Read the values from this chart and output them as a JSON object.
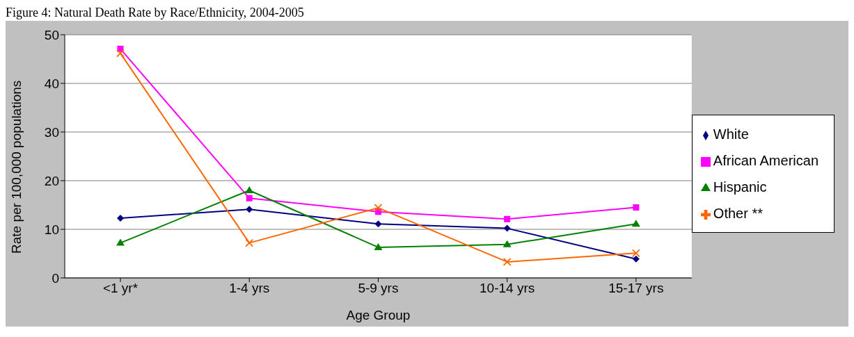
{
  "chart_data": {
    "type": "line",
    "title": "Figure 4: Natural Death Rate by Race/Ethnicity, 2004-2005",
    "xlabel": "Age Group",
    "ylabel": "Rate per 100,000 populations",
    "categories": [
      "<1 yr*",
      "1-4 yrs",
      "5-9 yrs",
      "10-14 yrs",
      "15-17 yrs"
    ],
    "series": [
      {
        "name": "White",
        "color": "#000080",
        "marker": "diamond",
        "values": [
          12.3,
          14.1,
          11.1,
          10.2,
          3.9
        ]
      },
      {
        "name": "African American",
        "color": "#ff00ff",
        "marker": "square",
        "values": [
          47.1,
          16.4,
          13.6,
          12.1,
          14.5
        ]
      },
      {
        "name": "Hispanic",
        "color": "#008000",
        "marker": "triangle",
        "values": [
          7.2,
          18.0,
          6.3,
          6.9,
          11.1
        ]
      },
      {
        "name": "Other **",
        "color": "#ff6600",
        "marker": "cross",
        "values": [
          46.2,
          7.2,
          14.4,
          3.3,
          5.1
        ]
      }
    ],
    "ylim": [
      0,
      50
    ],
    "yticks": [
      0,
      10,
      20,
      30,
      40,
      50
    ],
    "grid": "y",
    "legend": "right",
    "line_style": "solid"
  }
}
